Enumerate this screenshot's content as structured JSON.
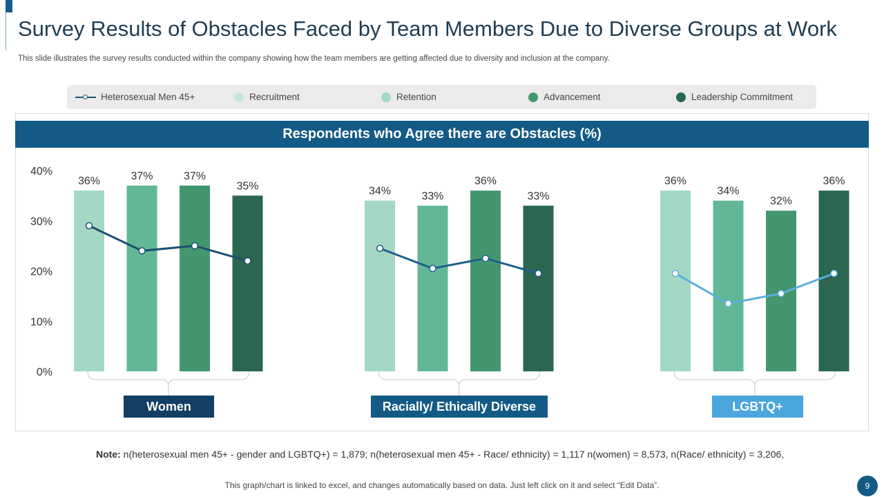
{
  "page": {
    "title": "Survey Results of Obstacles Faced by Team Members Due to Diverse Groups at Work",
    "subtitle": "This slide illustrates the survey results conducted within the company showing how the team members are getting affected due to  diversity and inclusion at the company.",
    "note_label": "Note:",
    "note_text": " n(heterosexual men 45+ - gender and LGBTQ+) = 1,879; n(heterosexual men 45+ - Race/ ethnicity) = 1,117 n(women) = 8,573, n(Race/ ethnicity) = 3,206,",
    "footer": "This graph/chart is linked to excel,  and changes automatically based on data. Just left click on it and select “Edit Data”.",
    "page_number": "9"
  },
  "colors": {
    "brand": "#135a86",
    "recruitment": "#a3d8c4",
    "retention": "#62b896",
    "advancement": "#43976f",
    "leadership": "#2a6650",
    "line_women": "#1b4f72",
    "line_racial": "#1e5f8c",
    "line_lgbtq": "#5aaedf"
  },
  "legend": [
    {
      "label": "Heterosexual  Men 45+",
      "kind": "line"
    },
    {
      "label": "Recruitment",
      "kind": "dot",
      "color": "#c9e6da"
    },
    {
      "label": "Retention",
      "kind": "dot",
      "color": "#a3d8c4"
    },
    {
      "label": "Advancement",
      "kind": "dot",
      "color": "#43976f"
    },
    {
      "label": "Leadership  Commitment",
      "kind": "dot",
      "color": "#2a6650"
    }
  ],
  "chart_data": {
    "type": "bar",
    "title": "Respondents who Agree there are Obstacles (%)",
    "ylim": [
      0,
      40
    ],
    "yticks": [
      "0%",
      "10%",
      "20%",
      "30%",
      "40%"
    ],
    "series_names": [
      "Recruitment",
      "Retention",
      "Advancement",
      "Leadership Commitment"
    ],
    "line_series_name": "Heterosexual Men 45+",
    "groups": [
      {
        "name": "Women",
        "values": [
          36,
          37,
          37,
          35
        ],
        "labels": [
          "36%",
          "37%",
          "37%",
          "35%"
        ],
        "line": [
          29,
          24,
          25,
          22
        ],
        "label_color": "#1b4f72",
        "line_color": "#1b4f72"
      },
      {
        "name": "Racially/ Ethically Diverse",
        "values": [
          34,
          33,
          36,
          33
        ],
        "labels": [
          "34%",
          "33%",
          "36%",
          "33%"
        ],
        "line": [
          24.5,
          20.5,
          22.5,
          19.5
        ],
        "label_color": "#1e5f8c",
        "line_color": "#1e5f8c"
      },
      {
        "name": "LGBTQ+",
        "values": [
          36,
          34,
          32,
          36
        ],
        "labels": [
          "36%",
          "34%",
          "32%",
          "36%"
        ],
        "line": [
          19.5,
          13.5,
          15.5,
          19.5
        ],
        "label_color": "#4aa6dd",
        "line_color": "#5aaedf"
      }
    ]
  }
}
